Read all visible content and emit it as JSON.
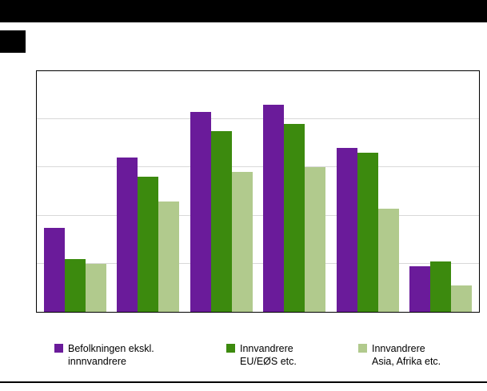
{
  "banner": {
    "color": "#000000"
  },
  "chart_data": {
    "type": "bar",
    "title": "",
    "xlabel": "",
    "ylabel": "",
    "categories": [
      "",
      "",
      "",
      "",
      "",
      ""
    ],
    "series": [
      {
        "name": "Befolkningen ekskl. innnvandrere",
        "color": "#6a1b9a",
        "values": [
          35,
          64,
          83,
          86,
          68,
          19
        ]
      },
      {
        "name": "Innvandrere EU/EØS etc.",
        "color": "#3c8a0e",
        "values": [
          22,
          56,
          75,
          78,
          66,
          21
        ]
      },
      {
        "name": "Innvandrere Asia, Afrika etc.",
        "color": "#b1ca8d",
        "values": [
          20,
          46,
          58,
          60,
          43,
          11
        ]
      }
    ],
    "ylim": [
      0,
      100
    ],
    "gridlines": [
      20,
      40,
      60,
      80
    ],
    "grid": true,
    "legend_position": "bottom"
  },
  "legend": {
    "items": [
      {
        "line1": "Befolkningen ekskl.",
        "line2": "innnvandrere",
        "color": "#6a1b9a"
      },
      {
        "line1": "Innvandrere",
        "line2": "EU/EØS etc.",
        "color": "#3c8a0e"
      },
      {
        "line1": "Innvandrere",
        "line2": "Asia, Afrika etc.",
        "color": "#b1ca8d"
      }
    ]
  }
}
